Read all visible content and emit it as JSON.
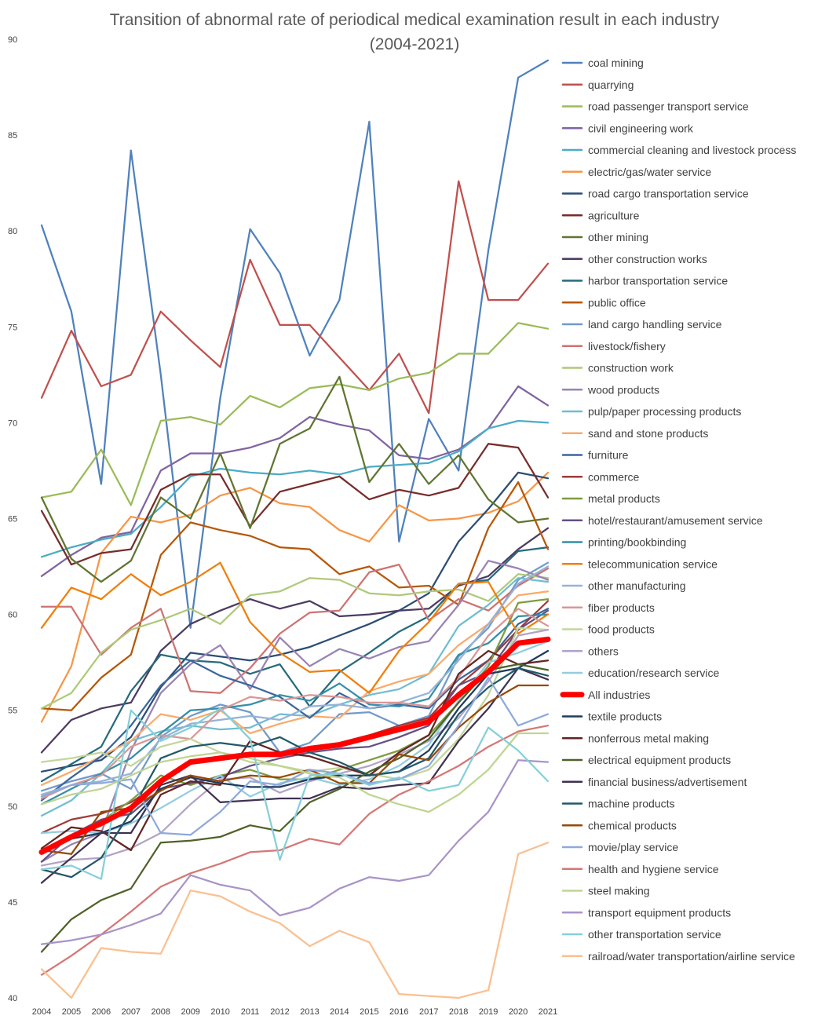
{
  "chart_data": {
    "type": "line",
    "title": "Transition of abnormal rate of periodical medical examination result in each industry",
    "subtitle": "(2004-2021)",
    "xlabel": "",
    "ylabel": "",
    "ylim": [
      40,
      90
    ],
    "ytick_values": [
      40,
      45,
      50,
      55,
      60,
      65,
      70,
      75,
      80,
      85,
      90
    ],
    "grid": false,
    "legend_position": "right",
    "x": [
      "2004",
      "2005",
      "2006",
      "2007",
      "2008",
      "2009",
      "2010",
      "2011",
      "2012",
      "2013",
      "2014",
      "2015",
      "2016",
      "2017",
      "2018",
      "2019",
      "2020",
      "2021"
    ],
    "series": [
      {
        "name": "coal mining",
        "color": "#4F81BD",
        "values": [
          80.3,
          75.8,
          66.8,
          84.2,
          72.5,
          59.3,
          71.3,
          80.1,
          77.8,
          73.5,
          76.4,
          85.7,
          63.8,
          70.2,
          67.5,
          79,
          88,
          88.9
        ]
      },
      {
        "name": "quarrying",
        "color": "#C0504D",
        "values": [
          71.3,
          74.8,
          71.9,
          72.5,
          75.8,
          74.3,
          72.9,
          78.5,
          75.1,
          75.1,
          73.4,
          71.7,
          73.6,
          70.5,
          82.6,
          76.4,
          76.4,
          78.3
        ]
      },
      {
        "name": "road passenger transport service",
        "color": "#9BBB59",
        "values": [
          66.1,
          66.4,
          68.6,
          65.7,
          70.1,
          70.3,
          69.9,
          71.4,
          70.8,
          71.8,
          72,
          71.7,
          72.3,
          72.6,
          73.6,
          73.6,
          75.2,
          74.9
        ]
      },
      {
        "name": "civil engineering work",
        "color": "#8064A2",
        "values": [
          62,
          63.1,
          64,
          64.3,
          67.5,
          68.4,
          68.4,
          68.7,
          69.2,
          70.3,
          69.9,
          69.6,
          68.3,
          68.1,
          68.6,
          69.7,
          71.9,
          70.9
        ]
      },
      {
        "name": "commercial cleaning and livestock process",
        "color": "#4BACC6",
        "values": [
          63,
          63.5,
          63.9,
          64.2,
          65.6,
          67.2,
          67.6,
          67.4,
          67.3,
          67.5,
          67.3,
          67.7,
          67.8,
          67.9,
          68.5,
          69.7,
          70.1,
          70
        ]
      },
      {
        "name": "electric/gas/water service",
        "color": "#F79646",
        "values": [
          54.4,
          57.3,
          63.2,
          65.1,
          64.8,
          65.2,
          66.2,
          66.6,
          65.8,
          65.6,
          64.4,
          63.8,
          65.7,
          64.9,
          65,
          65.3,
          65.9,
          67.4
        ]
      },
      {
        "name": "road cargo transportation service",
        "color": "#2C4D75",
        "values": [
          51.8,
          52.1,
          52.4,
          53.6,
          56.2,
          58,
          57.8,
          57.6,
          57.9,
          58.3,
          58.9,
          59.5,
          60.2,
          61.1,
          63.8,
          65.5,
          67.4,
          67.1
        ]
      },
      {
        "name": "agriculture",
        "color": "#772C2A",
        "values": [
          65.4,
          62.6,
          63.2,
          63.4,
          66.5,
          67.3,
          67.3,
          64.6,
          66.4,
          66.8,
          67.2,
          66,
          66.5,
          66.2,
          66.6,
          68.9,
          68.7,
          66.1
        ]
      },
      {
        "name": "other mining",
        "color": "#5F7530",
        "values": [
          66.1,
          62.9,
          61.7,
          62.8,
          66.1,
          65,
          68.4,
          64.5,
          68.9,
          69.7,
          72.4,
          66.9,
          68.9,
          66.8,
          68.3,
          66,
          64.8,
          65
        ]
      },
      {
        "name": "other construction works",
        "color": "#4D3B62",
        "values": [
          52.8,
          54.5,
          55.1,
          55.4,
          58.1,
          59.5,
          60.2,
          60.8,
          60.3,
          60.7,
          59.9,
          60,
          60.2,
          60.3,
          61.5,
          62,
          63.4,
          64.5
        ]
      },
      {
        "name": "harbor transportation service",
        "color": "#276A7C",
        "values": [
          51.3,
          52.2,
          53.1,
          56,
          57.9,
          57.6,
          57.5,
          56.9,
          57.4,
          55.2,
          57,
          58,
          59.1,
          59.9,
          61.6,
          61.8,
          63.3,
          63.5
        ]
      },
      {
        "name": "public office",
        "color": "#B65708",
        "values": [
          55.1,
          55,
          56.7,
          57.9,
          63.1,
          64.8,
          64.4,
          64.1,
          63.5,
          63.4,
          62.1,
          62.5,
          61.4,
          61.5,
          60.5,
          64.5,
          66.9,
          63.4
        ]
      },
      {
        "name": "land cargo handling service",
        "color": "#729ACA",
        "values": [
          50.8,
          51.3,
          51.7,
          50.9,
          53.6,
          54.7,
          55.3,
          54.9,
          52.8,
          53.3,
          54.8,
          54.9,
          54.2,
          54.7,
          57.8,
          59.3,
          61.8,
          62.7
        ]
      },
      {
        "name": "livestock/fishery",
        "color": "#CD7371",
        "values": [
          60.4,
          60.4,
          57.9,
          59.3,
          60.3,
          56,
          55.9,
          57.2,
          59,
          60.1,
          60.2,
          62.2,
          62.6,
          59.7,
          60.8,
          60.2,
          61.5,
          62.4
        ]
      },
      {
        "name": "construction work",
        "color": "#AFC97A",
        "values": [
          55.1,
          55.9,
          58,
          59.2,
          59.7,
          60.3,
          59.5,
          61,
          61.2,
          61.9,
          61.8,
          61.1,
          61,
          61.2,
          61.3,
          60.7,
          62.1,
          61.9
        ]
      },
      {
        "name": "wood products",
        "color": "#9983B5",
        "values": [
          47.1,
          48,
          48.6,
          52.9,
          55.9,
          57.4,
          58.4,
          56.1,
          58.8,
          57.3,
          58.2,
          57.7,
          58.3,
          58.6,
          60.5,
          62.8,
          62.4,
          61.8
        ]
      },
      {
        "name": "pulp/paper processing products",
        "color": "#6FBDD1",
        "values": [
          49.5,
          50.3,
          51.7,
          53.4,
          53.9,
          54.2,
          54,
          54.1,
          54.8,
          54.7,
          55.3,
          55.8,
          56.1,
          56.9,
          59.4,
          60.5,
          61.9,
          61.7
        ]
      },
      {
        "name": "sand and stone products",
        "color": "#F9AB6B",
        "values": [
          51.1,
          51.8,
          52.6,
          53.4,
          54.8,
          54.5,
          55,
          53.8,
          54.3,
          54.7,
          54.6,
          56,
          56.5,
          56.9,
          58.4,
          59.5,
          61,
          61.2
        ]
      },
      {
        "name": "furniture",
        "color": "#3A679C",
        "values": [
          50.3,
          51.5,
          52.6,
          54.2,
          56.3,
          57.6,
          56.8,
          56.3,
          55.7,
          54.6,
          55.9,
          55.1,
          55.3,
          55.1,
          56.6,
          57.6,
          59.5,
          60.3
        ]
      },
      {
        "name": "commerce",
        "color": "#9E3B38",
        "values": [
          48.6,
          49.3,
          49.6,
          50.2,
          51.2,
          52.3,
          52.6,
          52.7,
          52.8,
          53.1,
          53.3,
          53.7,
          54.2,
          54.6,
          56.3,
          57.6,
          59.2,
          60.7
        ]
      },
      {
        "name": "metal products",
        "color": "#7E9C40",
        "values": [
          47.6,
          48.3,
          49.2,
          50.3,
          51.6,
          51.1,
          51.6,
          51.9,
          51.4,
          51.4,
          51.9,
          52.4,
          52.9,
          53.7,
          55.4,
          57.3,
          60.6,
          60.8
        ]
      },
      {
        "name": "hotel/restaurant/amusement service",
        "color": "#664F82",
        "values": [
          47.1,
          48.5,
          49.3,
          49.6,
          50.9,
          51.2,
          51.5,
          52.1,
          52.5,
          52.8,
          53,
          53.1,
          53.6,
          54.2,
          56.3,
          57,
          59.2,
          60.2
        ]
      },
      {
        "name": "printing/bookbinding",
        "color": "#358EA6",
        "values": [
          50.1,
          50.9,
          51.7,
          52.5,
          53.8,
          55,
          55.1,
          55.3,
          55.8,
          55.5,
          56.4,
          55.3,
          55.2,
          55.6,
          57.9,
          58.5,
          59.9,
          60
        ]
      },
      {
        "name": "telecommunication service",
        "color": "#F07F09",
        "values": [
          59.3,
          61.4,
          60.8,
          62.1,
          61,
          61.7,
          62.7,
          59.6,
          58,
          57,
          57.1,
          55.9,
          58.1,
          59.6,
          61.6,
          61.7,
          59,
          60
        ]
      },
      {
        "name": "other manufacturing",
        "color": "#95B3D7",
        "values": [
          50.6,
          51.1,
          51.3,
          51.7,
          53.5,
          54.3,
          54.5,
          54.7,
          54.5,
          55.2,
          55.3,
          55.1,
          55.4,
          55.9,
          57.6,
          59.5,
          61.6,
          62.5
        ]
      },
      {
        "name": "fiber products",
        "color": "#DA9694",
        "values": [
          50.4,
          51.1,
          51.6,
          53.1,
          53.7,
          53.5,
          55,
          55.7,
          55.5,
          55.8,
          55.7,
          55.4,
          55.4,
          55.2,
          56.7,
          58.9,
          60.3,
          59.4
        ]
      },
      {
        "name": "food products",
        "color": "#C3D69B",
        "values": [
          52.3,
          52.5,
          52.8,
          52.1,
          53.1,
          53.5,
          52.8,
          52.3,
          52.1,
          51.8,
          52,
          51.7,
          51.4,
          51.9,
          53.5,
          55.8,
          59.3,
          59.2
        ]
      },
      {
        "name": "others",
        "color": "#B3A2C7",
        "values": [
          46.9,
          47.2,
          47.3,
          47.8,
          48.6,
          50.1,
          51.4,
          51.5,
          50.7,
          51.3,
          51.7,
          52.1,
          52.7,
          53.4,
          54.6,
          56.5,
          58.9,
          59.2
        ]
      },
      {
        "name": "education/research service",
        "color": "#93CDDD",
        "values": [
          48.6,
          48.7,
          48.6,
          49.1,
          49.9,
          50.8,
          51.6,
          50.5,
          51.2,
          51.5,
          51.1,
          51.4,
          52.1,
          53.2,
          55.5,
          57.5,
          58,
          58.6
        ]
      },
      {
        "name": "All industries",
        "color": "#FF0000",
        "values": [
          47.6,
          48.4,
          49.1,
          49.9,
          51.3,
          52.3,
          52.5,
          52.7,
          52.7,
          53,
          53.2,
          53.6,
          54,
          54.4,
          55.8,
          57,
          58.5,
          58.7
        ]
      },
      {
        "name": "textile products",
        "color": "#1F3B5C",
        "values": [
          47.7,
          48.3,
          48.6,
          49.2,
          50.9,
          51.5,
          51.2,
          51,
          51,
          51.4,
          51.6,
          51.6,
          51.8,
          52.9,
          55.1,
          56.9,
          57.2,
          58.1
        ]
      },
      {
        "name": "nonferrous metal making",
        "color": "#632523",
        "values": [
          47.8,
          48.9,
          48.7,
          47.7,
          50.6,
          51.3,
          51.1,
          53.4,
          52.8,
          52.6,
          52.1,
          51.6,
          52.8,
          53.7,
          56.9,
          58.1,
          57.4,
          57.6
        ]
      },
      {
        "name": "electrical equipment products",
        "color": "#4F6228",
        "values": [
          42.4,
          44.1,
          45.1,
          45.7,
          48.1,
          48.2,
          48.4,
          49,
          48.7,
          50.2,
          50.9,
          51.8,
          52.5,
          53.5,
          55.4,
          57.1,
          57.4,
          57.1
        ]
      },
      {
        "name": "financial business/advertisement",
        "color": "#3F3151",
        "values": [
          46,
          47.3,
          48.6,
          48.6,
          51.1,
          51.6,
          50.2,
          50.3,
          50.4,
          50.4,
          51,
          50.9,
          51.1,
          51.2,
          53.4,
          55.1,
          57.2,
          56.6
        ]
      },
      {
        "name": "machine products",
        "color": "#215968",
        "values": [
          46.7,
          46.3,
          47.3,
          49.7,
          52.5,
          53.1,
          53.3,
          53.1,
          53.6,
          52.8,
          52.3,
          51.6,
          51.8,
          52.5,
          54.8,
          56.2,
          57.2,
          56.8
        ]
      },
      {
        "name": "chemical products",
        "color": "#974806",
        "values": [
          47.7,
          47.5,
          49.7,
          49.9,
          50.8,
          51.6,
          51.3,
          51.6,
          51.5,
          51.9,
          51.2,
          51.2,
          52.7,
          52.4,
          54.1,
          55.4,
          56.3,
          56.3
        ]
      },
      {
        "name": "movie/play service",
        "color": "#8EA9DB",
        "values": [
          50.5,
          51.1,
          51.2,
          51.4,
          48.6,
          48.5,
          49.7,
          51.3,
          51.1,
          51.9,
          51.7,
          51.2,
          51.4,
          52.1,
          54.2,
          56.7,
          54.2,
          54.8
        ]
      },
      {
        "name": "health and hygiene service",
        "color": "#D57774",
        "values": [
          41.2,
          42.2,
          43.3,
          44.5,
          45.8,
          46.5,
          47,
          47.6,
          47.7,
          48.3,
          48,
          49.6,
          50.6,
          51.3,
          52.1,
          53.1,
          53.9,
          54.2
        ]
      },
      {
        "name": "steel making",
        "color": "#BFD591",
        "values": [
          50.1,
          50.6,
          50.9,
          51.6,
          52.3,
          52.6,
          52.8,
          52.5,
          52.1,
          51.7,
          51.5,
          50.6,
          50.1,
          49.7,
          50.6,
          51.9,
          53.8,
          53.8
        ]
      },
      {
        "name": "transport equipment products",
        "color": "#A894C8",
        "values": [
          42.8,
          43,
          43.3,
          43.8,
          44.4,
          46.4,
          45.9,
          45.6,
          44.3,
          44.7,
          45.7,
          46.3,
          46.1,
          46.4,
          48.2,
          49.7,
          52.4,
          52.3
        ]
      },
      {
        "name": "other transportation service",
        "color": "#86CFD9",
        "values": [
          46.7,
          46.9,
          46.2,
          55,
          53.4,
          54.1,
          55.1,
          53.5,
          47.2,
          51.6,
          51.7,
          51.1,
          51.5,
          50.8,
          51.1,
          54.1,
          52.9,
          51.3
        ]
      },
      {
        "name": "railroad/water transportation/airline service",
        "color": "#FAC090",
        "values": [
          41.5,
          40,
          42.6,
          42.4,
          42.3,
          45.6,
          45.3,
          44.5,
          43.9,
          42.7,
          43.5,
          42.9,
          40.2,
          40.1,
          40,
          40.4,
          47.5,
          48.1
        ]
      }
    ]
  }
}
